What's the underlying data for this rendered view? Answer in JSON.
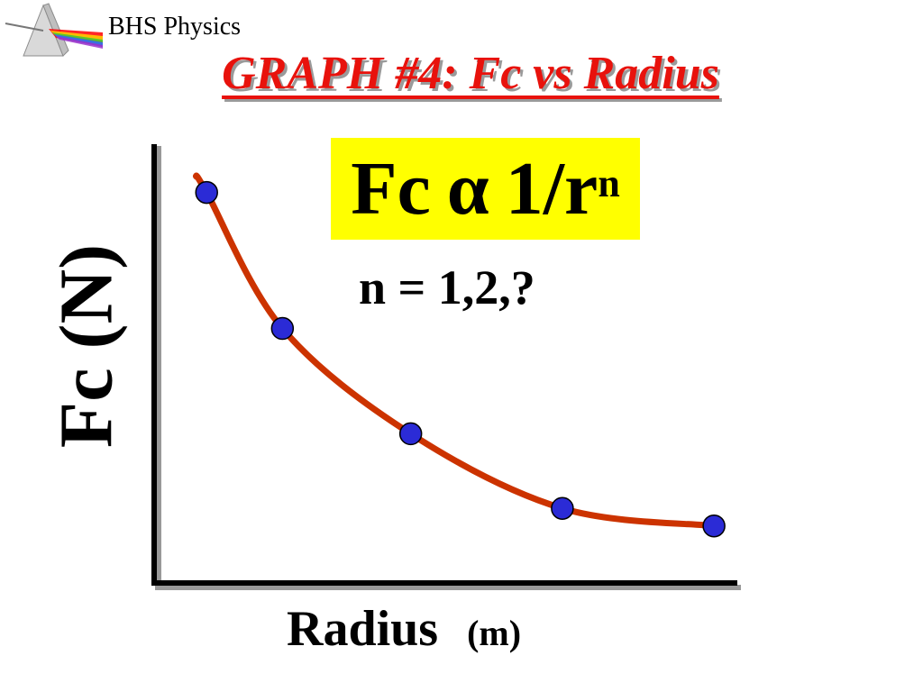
{
  "header": {
    "brand": "BHS Physics",
    "title": "GRAPH #4: Fc vs Radius",
    "logo_icon": "prism-rainbow-icon"
  },
  "annotation": {
    "formula_main": "Fc",
    "formula_symbol": "α",
    "formula_rhs": "1/r",
    "formula_exponent": "n",
    "highlight_color": "#ffff00",
    "note": "n = 1,2,?"
  },
  "chart_data": {
    "type": "scatter",
    "xlabel": "Radius",
    "xlabel_unit": "(m)",
    "ylabel": "Fc (N)",
    "xlim": [
      0,
      1
    ],
    "ylim": [
      0,
      1
    ],
    "grid": false,
    "series": [
      {
        "points": [
          {
            "x": 0.09,
            "y": 0.89
          },
          {
            "x": 0.22,
            "y": 0.58
          },
          {
            "x": 0.44,
            "y": 0.34
          },
          {
            "x": 0.7,
            "y": 0.17
          },
          {
            "x": 0.96,
            "y": 0.13
          }
        ],
        "marker_color": "#2b2bd6",
        "curve_color": "#cc3300"
      }
    ]
  }
}
